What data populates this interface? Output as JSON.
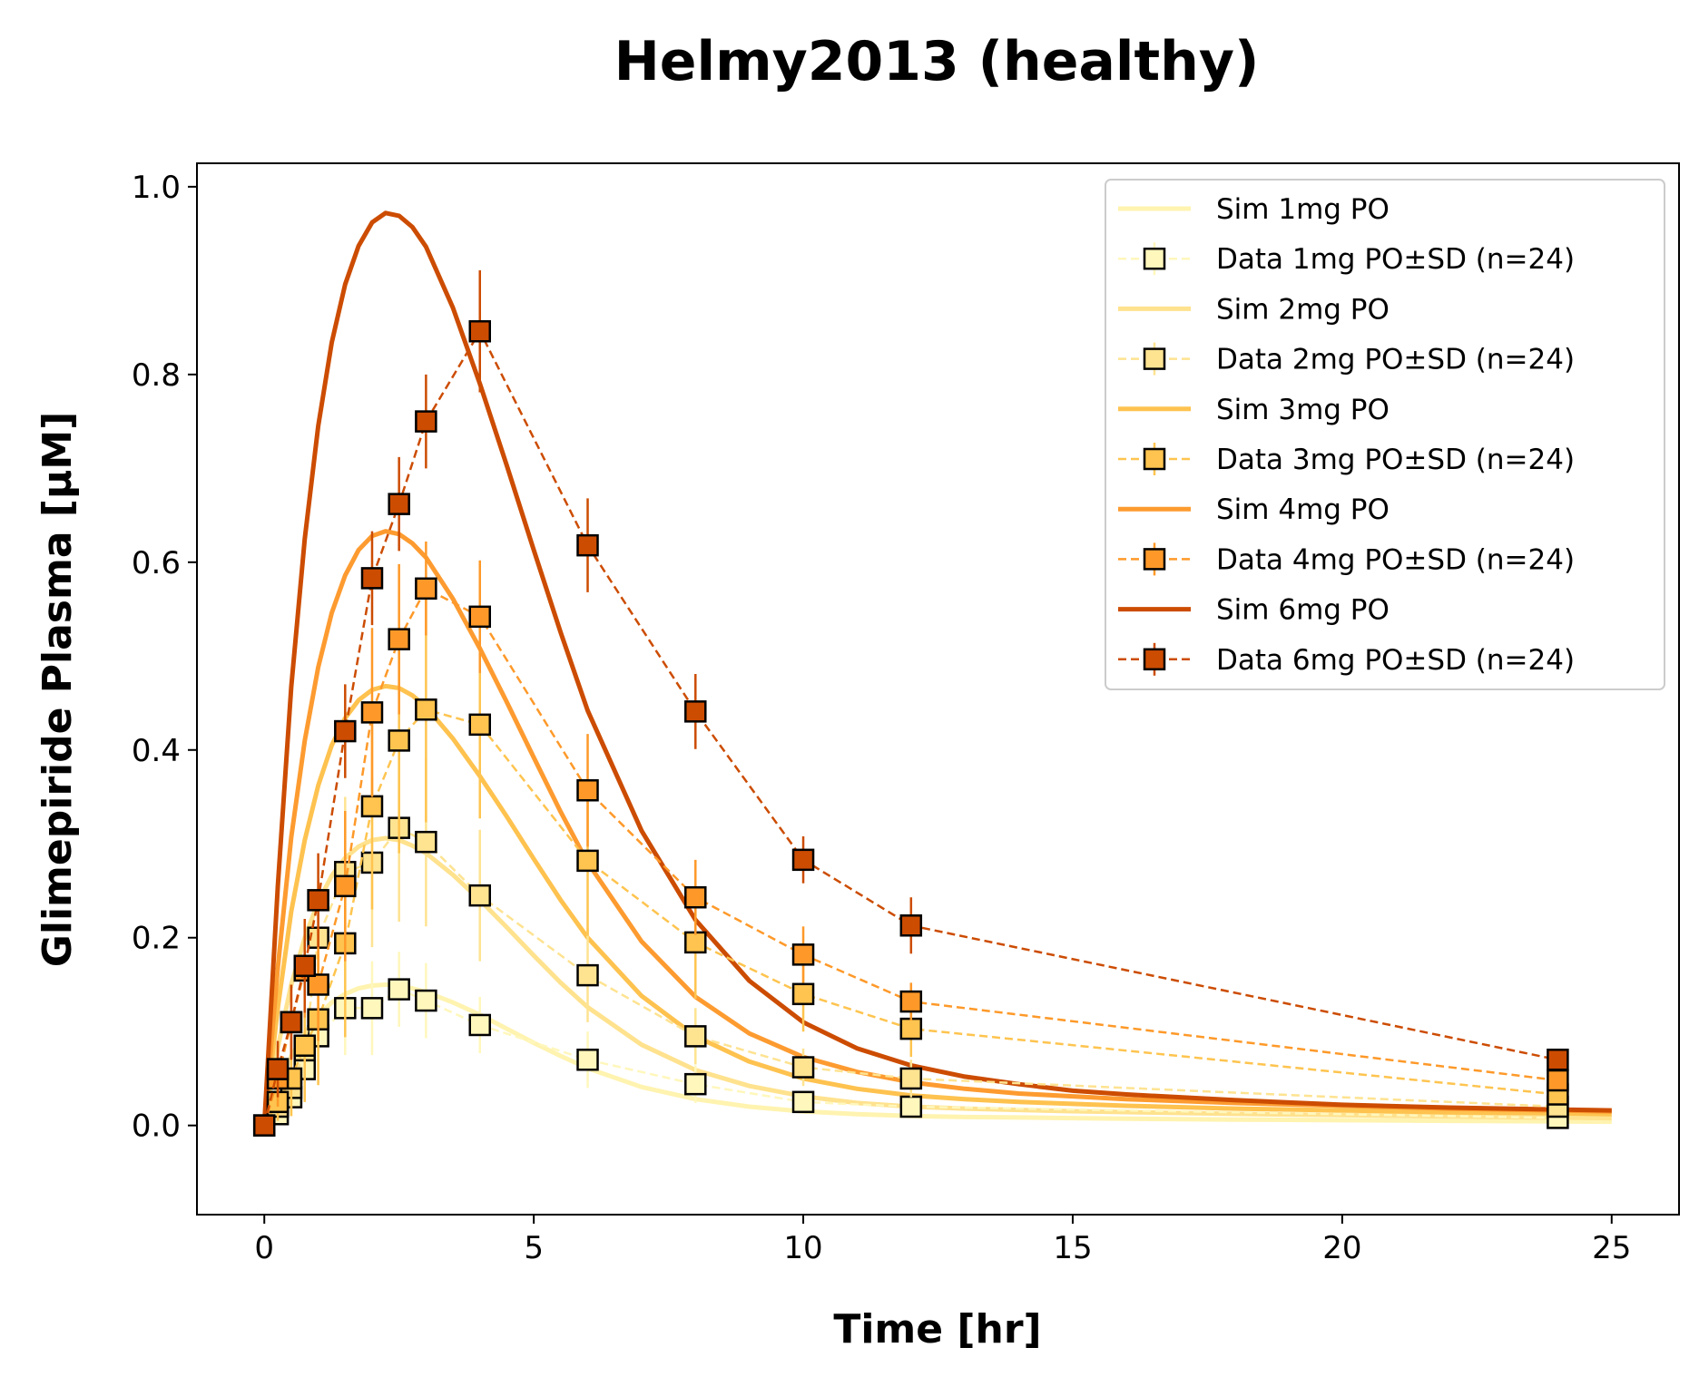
{
  "chart_data": {
    "type": "line",
    "title": "Helmy2013 (healthy)",
    "xlabel": "Time [hr]",
    "ylabel": "Glimepiride Plasma [µM]",
    "xlim": [
      -1.25,
      26.25
    ],
    "ylim": [
      -0.095,
      1.025
    ],
    "xticks": [
      0,
      5,
      10,
      15,
      20,
      25
    ],
    "yticks": [
      0.0,
      0.2,
      0.4,
      0.6,
      0.8,
      1.0
    ],
    "xtick_labels": [
      "0",
      "5",
      "10",
      "15",
      "20",
      "25"
    ],
    "ytick_labels": [
      "0.0",
      "0.2",
      "0.4",
      "0.6",
      "0.8",
      "1.0"
    ],
    "grid": false,
    "legend_position": "top-right",
    "sim_series": [
      {
        "name": "Sim 1mg PO",
        "color": "#fff3b0",
        "dose": 1,
        "x": [
          0,
          0.25,
          0.5,
          0.75,
          1,
          1.25,
          1.5,
          1.75,
          2,
          2.25,
          2.5,
          2.75,
          3,
          3.5,
          4,
          4.5,
          5,
          5.5,
          6,
          7,
          8,
          9,
          10,
          11,
          12,
          13,
          14,
          15,
          16,
          18,
          20,
          22,
          24,
          25
        ],
        "y": [
          0,
          0.041,
          0.074,
          0.098,
          0.117,
          0.131,
          0.14,
          0.146,
          0.149,
          0.15,
          0.149,
          0.146,
          0.142,
          0.131,
          0.118,
          0.103,
          0.088,
          0.074,
          0.061,
          0.041,
          0.028,
          0.02,
          0.015,
          0.012,
          0.01,
          0.009,
          0.0085,
          0.0078,
          0.0072,
          0.0063,
          0.0056,
          0.0049,
          0.0042,
          0.004
        ]
      },
      {
        "name": "Sim 2mg PO",
        "color": "#ffe28e",
        "dose": 2,
        "x": [
          0,
          0.25,
          0.5,
          0.75,
          1,
          1.25,
          1.5,
          1.75,
          2,
          2.25,
          2.5,
          2.75,
          3,
          3.5,
          4,
          4.5,
          5,
          5.5,
          6,
          7,
          8,
          9,
          10,
          11,
          12,
          13,
          14,
          15,
          16,
          18,
          20,
          22,
          24,
          25
        ],
        "y": [
          0,
          0.083,
          0.15,
          0.2,
          0.238,
          0.266,
          0.285,
          0.297,
          0.304,
          0.306,
          0.304,
          0.298,
          0.29,
          0.267,
          0.24,
          0.211,
          0.181,
          0.152,
          0.126,
          0.086,
          0.059,
          0.042,
          0.031,
          0.024,
          0.02,
          0.018,
          0.0165,
          0.0152,
          0.0142,
          0.0124,
          0.011,
          0.0096,
          0.0084,
          0.0078
        ]
      },
      {
        "name": "Sim 3mg PO",
        "color": "#fec24f",
        "dose": 3,
        "x": [
          0,
          0.25,
          0.5,
          0.75,
          1,
          1.25,
          1.5,
          1.75,
          2,
          2.25,
          2.5,
          2.75,
          3,
          3.5,
          4,
          4.5,
          5,
          5.5,
          6,
          7,
          8,
          9,
          10,
          11,
          12,
          13,
          14,
          15,
          16,
          18,
          20,
          22,
          24,
          25
        ],
        "y": [
          0,
          0.125,
          0.228,
          0.304,
          0.362,
          0.405,
          0.434,
          0.453,
          0.464,
          0.468,
          0.466,
          0.458,
          0.446,
          0.412,
          0.372,
          0.329,
          0.284,
          0.24,
          0.2,
          0.138,
          0.095,
          0.068,
          0.05,
          0.039,
          0.032,
          0.028,
          0.025,
          0.023,
          0.021,
          0.018,
          0.016,
          0.014,
          0.013,
          0.012
        ]
      },
      {
        "name": "Sim 4mg PO",
        "color": "#fd9b30",
        "dose": 4,
        "x": [
          0,
          0.25,
          0.5,
          0.75,
          1,
          1.25,
          1.5,
          1.75,
          2,
          2.25,
          2.5,
          2.75,
          3,
          3.5,
          4,
          4.5,
          5,
          5.5,
          6,
          7,
          8,
          9,
          10,
          11,
          12,
          13,
          14,
          15,
          16,
          18,
          20,
          22,
          24,
          25
        ],
        "y": [
          0,
          0.168,
          0.307,
          0.41,
          0.488,
          0.546,
          0.586,
          0.613,
          0.628,
          0.633,
          0.63,
          0.62,
          0.605,
          0.561,
          0.508,
          0.451,
          0.392,
          0.334,
          0.28,
          0.196,
          0.137,
          0.098,
          0.073,
          0.057,
          0.046,
          0.039,
          0.034,
          0.031,
          0.028,
          0.024,
          0.021,
          0.018,
          0.016,
          0.015
        ]
      },
      {
        "name": "Sim 6mg PO",
        "color": "#cc4c02",
        "dose": 6,
        "x": [
          0,
          0.25,
          0.5,
          0.75,
          1,
          1.25,
          1.5,
          1.75,
          2,
          2.25,
          2.5,
          2.75,
          3,
          3.5,
          4,
          4.5,
          5,
          5.5,
          6,
          7,
          8,
          9,
          10,
          11,
          12,
          13,
          14,
          15,
          16,
          18,
          20,
          22,
          24,
          25
        ],
        "y": [
          0,
          0.255,
          0.467,
          0.625,
          0.745,
          0.834,
          0.896,
          0.937,
          0.962,
          0.972,
          0.969,
          0.957,
          0.936,
          0.871,
          0.79,
          0.703,
          0.613,
          0.525,
          0.442,
          0.314,
          0.219,
          0.154,
          0.11,
          0.082,
          0.064,
          0.052,
          0.044,
          0.037,
          0.033,
          0.027,
          0.022,
          0.019,
          0.017,
          0.016
        ]
      }
    ],
    "data_series": [
      {
        "name": "Data 1mg PO±SD (n=24)",
        "color": "#fff7bc",
        "dose": 1,
        "x": [
          0,
          0.25,
          0.5,
          0.75,
          1,
          1.5,
          2,
          2.5,
          3,
          4,
          6,
          8,
          10,
          12,
          24
        ],
        "y": [
          0,
          0.012,
          0.03,
          0.06,
          0.095,
          0.125,
          0.125,
          0.145,
          0.133,
          0.107,
          0.07,
          0.044,
          0.025,
          0.02,
          0.008
        ],
        "sd": [
          0,
          0.01,
          0.02,
          0.03,
          0.04,
          0.05,
          0.05,
          0.04,
          0.04,
          0.03,
          0.03,
          0.02,
          0.012,
          0.01,
          0.005
        ]
      },
      {
        "name": "Data 2mg PO±SD (n=24)",
        "color": "#fee391",
        "dose": 2,
        "x": [
          0,
          0.25,
          0.5,
          0.75,
          1,
          1.5,
          2,
          2.5,
          3,
          4,
          6,
          8,
          10,
          12,
          24
        ],
        "y": [
          0,
          0.02,
          0.04,
          0.08,
          0.2,
          0.27,
          0.28,
          0.317,
          0.302,
          0.245,
          0.16,
          0.095,
          0.062,
          0.05,
          0.02
        ],
        "sd": [
          0,
          0.015,
          0.03,
          0.05,
          0.06,
          0.08,
          0.09,
          0.1,
          0.09,
          0.07,
          0.05,
          0.03,
          0.02,
          0.02,
          0.01
        ]
      },
      {
        "name": "Data 3mg PO±SD (n=24)",
        "color": "#fec44f",
        "dose": 3,
        "x": [
          0,
          0.25,
          0.5,
          0.75,
          1,
          1.5,
          2,
          2.5,
          3,
          4,
          6,
          8,
          10,
          12,
          24
        ],
        "y": [
          0,
          0.025,
          0.05,
          0.085,
          0.113,
          0.194,
          0.34,
          0.41,
          0.443,
          0.427,
          0.282,
          0.195,
          0.14,
          0.103,
          0.033
        ],
        "sd": [
          0,
          0.02,
          0.04,
          0.06,
          0.07,
          0.1,
          0.11,
          0.12,
          0.12,
          0.1,
          0.08,
          0.06,
          0.04,
          0.03,
          0.01
        ]
      },
      {
        "name": "Data 4mg PO±SD (n=24)",
        "color": "#fe9929",
        "dose": 4,
        "x": [
          0,
          0.25,
          0.5,
          0.75,
          1,
          1.5,
          2,
          2.5,
          3,
          4,
          6,
          8,
          10,
          12,
          24
        ],
        "y": [
          0,
          0.05,
          0.11,
          0.165,
          0.15,
          0.255,
          0.44,
          0.518,
          0.572,
          0.542,
          0.357,
          0.243,
          0.182,
          0.132,
          0.048
        ],
        "sd": [
          0,
          0.03,
          0.04,
          0.05,
          0.06,
          0.08,
          0.09,
          0.08,
          0.05,
          0.06,
          0.06,
          0.04,
          0.03,
          0.02,
          0.01
        ]
      },
      {
        "name": "Data 6mg PO±SD (n=24)",
        "color": "#cc4c02",
        "dose": 6,
        "x": [
          0,
          0.25,
          0.5,
          0.75,
          1,
          1.5,
          2,
          2.5,
          3,
          4,
          6,
          8,
          10,
          12,
          24
        ],
        "y": [
          0,
          0.06,
          0.11,
          0.17,
          0.24,
          0.42,
          0.583,
          0.662,
          0.75,
          0.846,
          0.618,
          0.441,
          0.283,
          0.213,
          0.07
        ],
        "sd": [
          0,
          0.03,
          0.04,
          0.05,
          0.05,
          0.05,
          0.05,
          0.05,
          0.05,
          0.065,
          0.05,
          0.04,
          0.025,
          0.03,
          0.01
        ]
      }
    ]
  }
}
